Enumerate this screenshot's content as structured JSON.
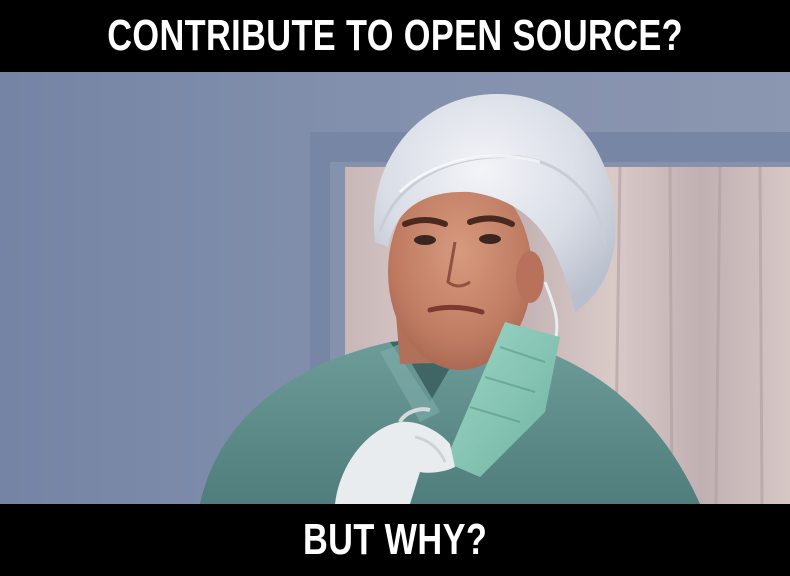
{
  "meme": {
    "top_caption": "CONTRIBUTE TO OPEN SOURCE?",
    "bottom_caption": "BUT WHY?"
  }
}
